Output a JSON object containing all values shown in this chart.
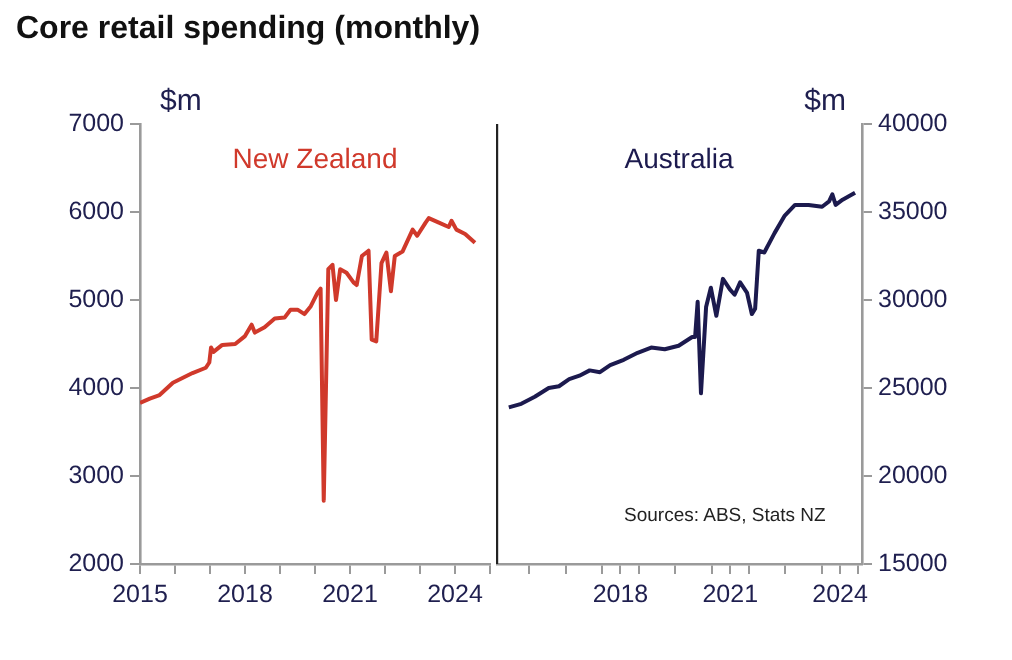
{
  "chart_data": [
    {
      "type": "line",
      "title": "Core retail spending (monthly)",
      "ylabel": "$m",
      "xlim": [
        2015,
        2025
      ],
      "xticks": [
        2015,
        {
          "value": 2016,
          "label": null
        },
        {
          "value": 2017,
          "label": null
        },
        2018,
        {
          "value": 2019,
          "label": null
        },
        {
          "value": 2020,
          "label": null
        },
        2021,
        {
          "value": 2022,
          "label": null
        },
        {
          "value": 2023,
          "label": null
        },
        2024,
        {
          "value": 2025,
          "label": null
        }
      ],
      "ylim": [
        2000,
        7000
      ],
      "yticks": [
        2000,
        3000,
        4000,
        5000,
        6000,
        7000
      ],
      "series": [
        {
          "name": "New Zealand",
          "color": "#d0392b",
          "x": [
            2015.0,
            2015.28,
            2015.56,
            2015.94,
            2016.5,
            2016.88,
            2016.98,
            2017.03,
            2017.1,
            2017.35,
            2017.72,
            2018.0,
            2018.19,
            2018.28,
            2018.56,
            2018.85,
            2019.13,
            2019.3,
            2019.5,
            2019.7,
            2019.88,
            2020.07,
            2020.16,
            2020.25,
            2020.38,
            2020.5,
            2020.6,
            2020.72,
            2020.9,
            2021.1,
            2021.19,
            2021.34,
            2021.53,
            2021.62,
            2021.75,
            2021.9,
            2022.04,
            2022.17,
            2022.28,
            2022.5,
            2022.79,
            2022.92,
            2023.16,
            2023.25,
            2023.54,
            2023.82,
            2023.9,
            2024.04,
            2024.29,
            2024.57
          ],
          "values": [
            3830,
            3880,
            3920,
            4060,
            4170,
            4230,
            4290,
            4460,
            4410,
            4490,
            4500,
            4590,
            4720,
            4630,
            4690,
            4790,
            4800,
            4890,
            4890,
            4840,
            4930,
            5080,
            5130,
            2720,
            5350,
            5400,
            5000,
            5350,
            5310,
            5200,
            5170,
            5500,
            5560,
            4550,
            4530,
            5420,
            5540,
            5100,
            5500,
            5550,
            5800,
            5730,
            5880,
            5930,
            5880,
            5830,
            5900,
            5800,
            5750,
            5650
          ]
        }
      ]
    },
    {
      "type": "line",
      "y2label": "$m",
      "xlim": [
        2014.6,
        2024.6
      ],
      "xticks": [
        {
          "value": 2015.5,
          "label": null
        },
        {
          "value": 2016.5,
          "label": null
        },
        {
          "value": 2017.5,
          "label": null
        },
        2018,
        {
          "value": 2018.5,
          "label": null
        },
        {
          "value": 2019.5,
          "label": null
        },
        {
          "value": 2020.5,
          "label": null
        },
        2021,
        {
          "value": 2021.5,
          "label": null
        },
        {
          "value": 2022.5,
          "label": null
        },
        {
          "value": 2023.5,
          "label": null
        },
        2024,
        {
          "value": 2024.5,
          "label": null
        }
      ],
      "y2lim": [
        15000,
        40000
      ],
      "y2ticks": [
        15000,
        20000,
        25000,
        30000,
        35000,
        40000
      ],
      "annotations": [
        "Sources: ABS, Stats NZ"
      ],
      "series": [
        {
          "name": "Australia",
          "color": "#1c1a4e",
          "axis": "y2",
          "x": [
            2014.95,
            2015.29,
            2015.66,
            2016.04,
            2016.32,
            2016.6,
            2016.88,
            2017.16,
            2017.44,
            2017.72,
            2018.09,
            2018.47,
            2018.84,
            2019.21,
            2019.59,
            2019.96,
            2020.04,
            2020.11,
            2020.2,
            2020.34,
            2020.47,
            2020.62,
            2020.8,
            2020.99,
            2021.12,
            2021.27,
            2021.46,
            2021.59,
            2021.68,
            2021.78,
            2021.93,
            2022.21,
            2022.49,
            2022.77,
            2023.14,
            2023.51,
            2023.7,
            2023.79,
            2023.88,
            2024.07,
            2024.41
          ],
          "values": [
            23900,
            24100,
            24500,
            25000,
            25100,
            25500,
            25700,
            26000,
            25900,
            26300,
            26600,
            27000,
            27300,
            27200,
            27400,
            27900,
            27900,
            29900,
            24700,
            29600,
            30700,
            29100,
            31200,
            30600,
            30300,
            31000,
            30400,
            29200,
            29500,
            32800,
            32700,
            33800,
            34800,
            35400,
            35400,
            35300,
            35600,
            36000,
            35400,
            35700,
            36100
          ]
        }
      ]
    }
  ]
}
